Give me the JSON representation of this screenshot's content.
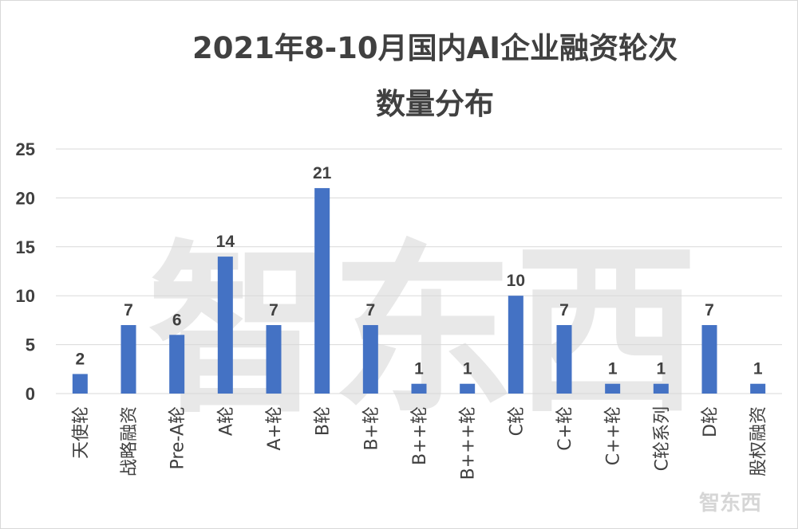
{
  "chart_data": {
    "type": "bar",
    "title_lines": [
      "2021年8-10月国内AI企业融资轮次",
      "数量分布"
    ],
    "categories": [
      "天使轮",
      "战略融资",
      "Pre-A轮",
      "A轮",
      "A+轮",
      "B轮",
      "B+轮",
      "B++轮",
      "B+++轮",
      "C轮",
      "C+轮",
      "C++轮",
      "C轮系列",
      "D轮",
      "股权融资"
    ],
    "values": [
      2,
      7,
      6,
      14,
      7,
      21,
      7,
      1,
      1,
      10,
      7,
      1,
      1,
      7,
      1
    ],
    "ylim": [
      0,
      25
    ],
    "yticks": [
      0,
      5,
      10,
      15,
      20,
      25
    ],
    "grid": true,
    "data_labels": true,
    "bar_color": "#4472C4",
    "watermark": "智东西"
  }
}
